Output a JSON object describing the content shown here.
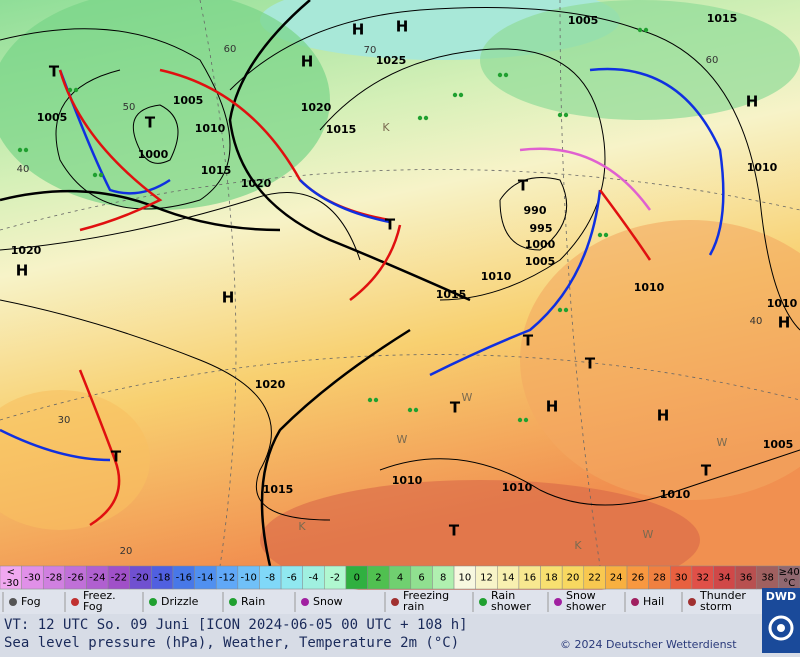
{
  "map": {
    "isobar_labels": [
      "1005",
      "1015",
      "1025",
      "1020",
      "1015",
      "1005",
      "1010",
      "1015",
      "1000",
      "1005",
      "1020",
      "1020",
      "990",
      "995",
      "1000",
      "1005",
      "1010",
      "1015",
      "1010",
      "1010",
      "1010",
      "1020",
      "1010",
      "1010",
      "1015",
      "1010",
      "1005"
    ],
    "pressure_centers": [
      "H",
      "H",
      "H",
      "H",
      "H",
      "H",
      "H",
      "H",
      "H",
      "T",
      "T",
      "T",
      "T",
      "T",
      "T",
      "T",
      "T",
      "T",
      "T"
    ],
    "temperature_labels": [
      "60",
      "50",
      "40",
      "30",
      "20",
      "60",
      "40",
      "70"
    ],
    "weather_letters": [
      "W",
      "W",
      "W",
      "W",
      "K",
      "K",
      "K"
    ]
  },
  "color_scale": {
    "first_cell": {
      "top": "<",
      "bottom": "-30"
    },
    "labels": [
      "-30",
      "-28",
      "-26",
      "-24",
      "-22",
      "-20",
      "-18",
      "-16",
      "-14",
      "-12",
      "-10",
      "-8",
      "-6",
      "-4",
      "-2",
      "0",
      "2",
      "4",
      "6",
      "8",
      "10",
      "12",
      "14",
      "16",
      "18",
      "20",
      "22",
      "24",
      "26",
      "28",
      "30",
      "32",
      "34",
      "36",
      "38"
    ],
    "last_cell": {
      "top": "≥40",
      "bottom": "°C"
    },
    "colors": [
      "#f0a8f0",
      "#e090e8",
      "#d080e0",
      "#c070d8",
      "#b060d0",
      "#a050c8",
      "#7050d0",
      "#5060e0",
      "#4878e8",
      "#5090f0",
      "#60a8f8",
      "#70c0f8",
      "#80d8f8",
      "#90e8f0",
      "#a0f0e0",
      "#b0f8d0",
      "#30b040",
      "#50c050",
      "#70d070",
      "#90e090",
      "#b0f0b0",
      "#f8f8e0",
      "#f8f4c8",
      "#f8f0b0",
      "#f8e890",
      "#f8e070",
      "#f8d860",
      "#f8c850",
      "#f8b040",
      "#f89840",
      "#f08040",
      "#e86040",
      "#e05048",
      "#d04848",
      "#b85050",
      "#a06060",
      "#906870"
    ]
  },
  "legend": {
    "items": [
      {
        "lines": [
          "Fog"
        ]
      },
      {
        "lines": [
          "Freez.",
          "Fog"
        ]
      },
      {
        "lines": [
          "Drizzle"
        ]
      },
      {
        "lines": [
          "Rain"
        ]
      },
      {
        "lines": [
          "Snow"
        ]
      },
      {
        "lines": [
          "Freezing",
          "rain"
        ]
      },
      {
        "lines": [
          "Rain",
          "shower"
        ]
      },
      {
        "lines": [
          "Snow",
          "shower"
        ]
      },
      {
        "lines": [
          "Hail"
        ]
      },
      {
        "lines": [
          "Thunder",
          "storm"
        ]
      }
    ]
  },
  "footer": {
    "valid_time": "VT: 12 UTC So.  09 Juni [ICON 2024-06-05  00 UTC + 108 h]",
    "description": "Sea level pressure (hPa), Weather, Temperature 2m (°C)",
    "copyright": "© 2024 Deutscher Wetterdienst",
    "logo": "DWD"
  }
}
